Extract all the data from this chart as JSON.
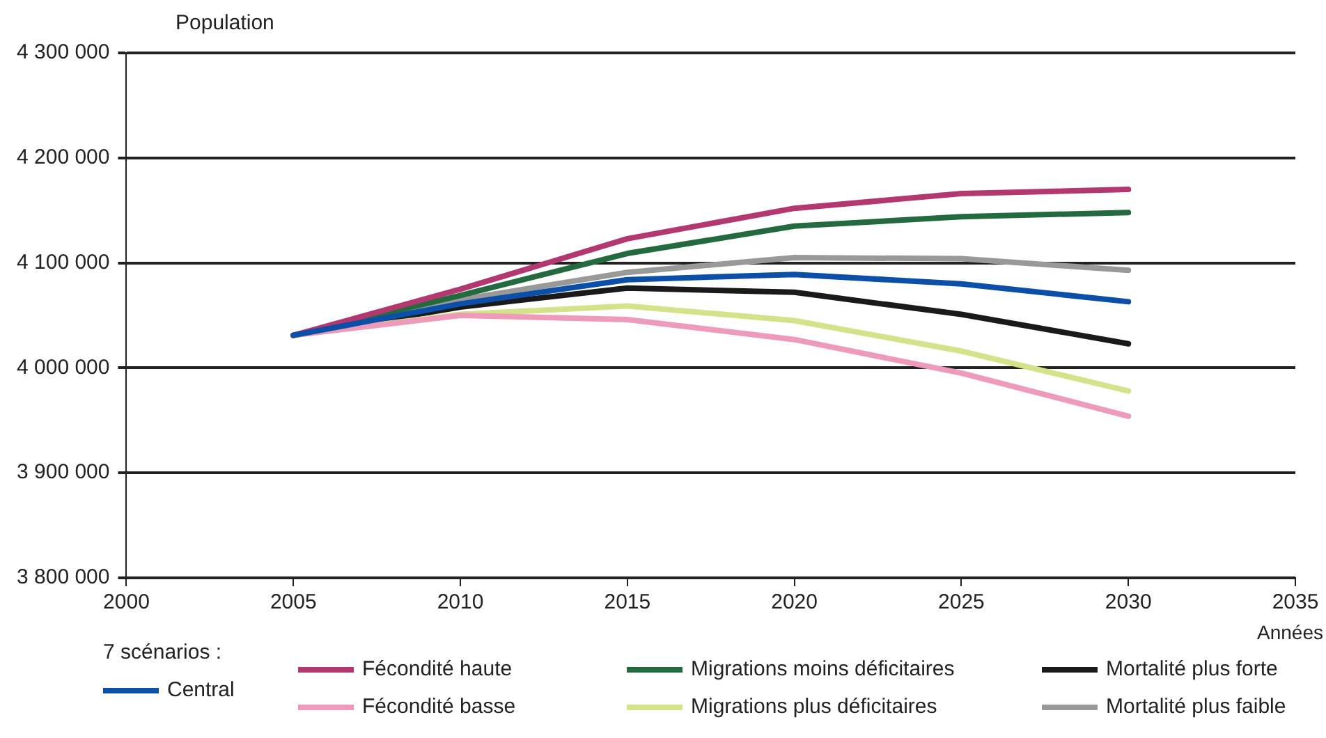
{
  "chart_data": {
    "type": "line",
    "ylabel": "Population",
    "xlabel": "Années",
    "legend_title": "7 scénarios :",
    "x": [
      2005,
      2010,
      2015,
      2020,
      2025,
      2030
    ],
    "xlim": [
      2000,
      2035
    ],
    "xticks": [
      2000,
      2005,
      2010,
      2015,
      2020,
      2025,
      2030,
      2035
    ],
    "ylim": [
      3800000,
      4300000
    ],
    "yticks": [
      {
        "value": 3800000,
        "label": "3 800 000"
      },
      {
        "value": 3900000,
        "label": "3 900 000"
      },
      {
        "value": 4000000,
        "label": "4 000 000"
      },
      {
        "value": 4100000,
        "label": "4 100 000"
      },
      {
        "value": 4200000,
        "label": "4 200 000"
      },
      {
        "value": 4300000,
        "label": "4 300 000"
      }
    ],
    "grid": "y",
    "legend": "bottom",
    "marker": "none",
    "line_style": "solid",
    "series": [
      {
        "name": "Central",
        "color": "#0b4fa8",
        "values": [
          4031000,
          4061000,
          4084000,
          4089000,
          4080000,
          4063000
        ]
      },
      {
        "name": "Fécondité haute",
        "color": "#b3386f",
        "values": [
          4031000,
          4075000,
          4123000,
          4152000,
          4166000,
          4170000
        ]
      },
      {
        "name": "Fécondité basse",
        "color": "#ee9bbb",
        "values": [
          4031000,
          4050000,
          4046000,
          4027000,
          3995000,
          3954000
        ]
      },
      {
        "name": "Migrations moins déficitaires",
        "color": "#236a3e",
        "values": [
          4031000,
          4069000,
          4109000,
          4135000,
          4144000,
          4148000
        ]
      },
      {
        "name": "Migrations plus déficitaires",
        "color": "#d4e38a",
        "values": [
          4031000,
          4051000,
          4059000,
          4045000,
          4016000,
          3978000
        ]
      },
      {
        "name": "Mortalité plus forte",
        "color": "#1a1a1a",
        "values": [
          4031000,
          4058000,
          4076000,
          4072000,
          4051000,
          4023000
        ]
      },
      {
        "name": "Mortalité plus faible",
        "color": "#999999",
        "values": [
          4031000,
          4065000,
          4091000,
          4105000,
          4104000,
          4093000
        ]
      }
    ]
  }
}
